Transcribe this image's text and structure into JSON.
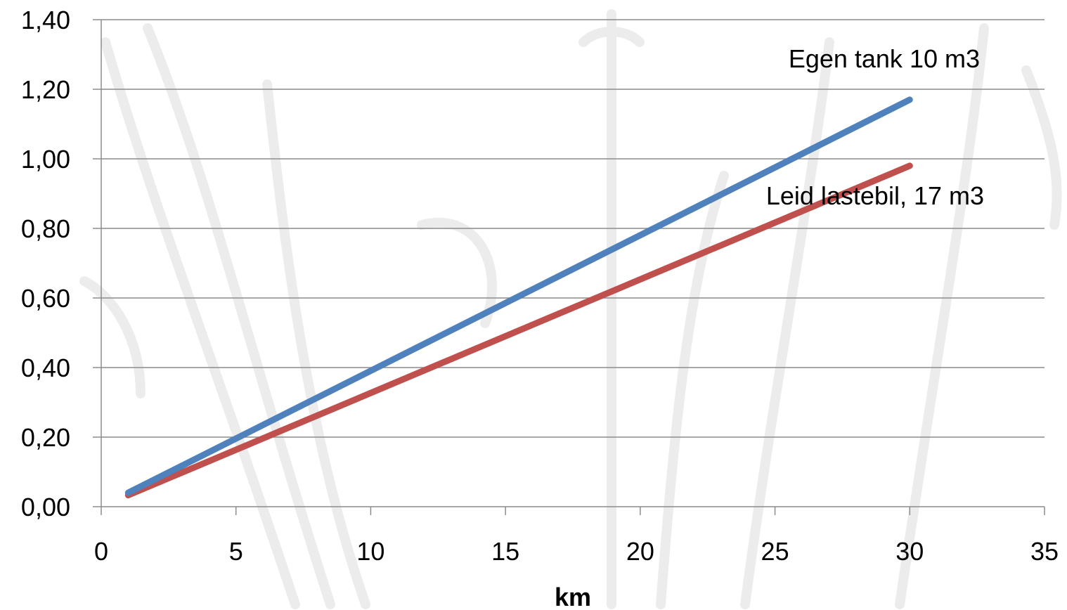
{
  "chart_data": {
    "type": "line",
    "title": "",
    "xlabel": "km",
    "ylabel": "",
    "xlim": [
      0,
      35
    ],
    "ylim": [
      0,
      1.4
    ],
    "x_ticks": [
      "0",
      "5",
      "10",
      "15",
      "20",
      "25",
      "30",
      "35"
    ],
    "y_ticks": [
      "0,00",
      "0,20",
      "0,40",
      "0,60",
      "0,80",
      "1,00",
      "1,20",
      "1,40"
    ],
    "grid": true,
    "series": [
      {
        "name": "Egen tank 10 m3",
        "color": "#4f81bd",
        "x": [
          1,
          30
        ],
        "y": [
          0.04,
          1.17
        ]
      },
      {
        "name": "Leid lastebil, 17 m3",
        "color": "#c0504d",
        "x": [
          1,
          30
        ],
        "y": [
          0.033,
          0.98
        ]
      }
    ]
  }
}
